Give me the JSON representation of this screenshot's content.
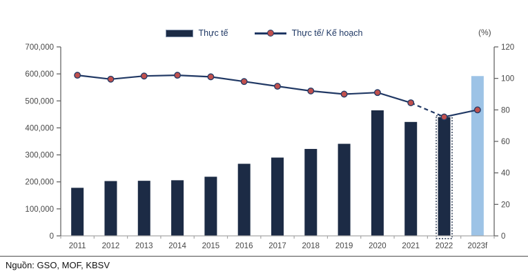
{
  "source_note": "Nguồn: GSO, MOF, KBSV",
  "colors": {
    "bar": "#1c2b45",
    "forecast_bar": "#9dc3e6",
    "line": "#203864",
    "marker_fill": "#c0504d",
    "marker_stroke": "#203864",
    "y_axis": "#595959",
    "x_axis": "#a6a6a6",
    "tick_label": "#474747",
    "legend_text": "#1f3864"
  },
  "chart_data": {
    "type": "bar+line",
    "title": "",
    "categories": [
      "2011",
      "2012",
      "2013",
      "2014",
      "2015",
      "2016",
      "2017",
      "2018",
      "2019",
      "2020",
      "2021",
      "2022",
      "2023f"
    ],
    "series": [
      {
        "name": "Thực tế",
        "type": "bar",
        "axis": "left",
        "values": [
          178000,
          203000,
          204000,
          206000,
          219000,
          267000,
          290000,
          322000,
          341000,
          465000,
          422000,
          440000,
          592000
        ]
      },
      {
        "name": "Thực tế/ Kế hoạch",
        "type": "line",
        "axis": "right",
        "values": [
          102,
          99.5,
          101.5,
          102,
          101,
          98,
          95,
          92,
          90,
          91,
          84.5,
          75.5,
          80
        ],
        "dashed_segment": [
          10,
          11
        ]
      }
    ],
    "left_axis": {
      "min": 0,
      "max": 700000,
      "step": 100000,
      "tick_labels": [
        "0",
        "100,000",
        "200,000",
        "300,000",
        "400,000",
        "500,000",
        "600,000",
        "700,000"
      ]
    },
    "right_axis": {
      "min": 0,
      "max": 120,
      "step": 20,
      "unit_label": "(%)",
      "tick_labels": [
        "0",
        "20",
        "40",
        "60",
        "80",
        "100",
        "120"
      ]
    },
    "bar_style": {
      "dotted_outline_index": 11,
      "forecast_index": 12
    },
    "legend_position": "top-center",
    "grid": false
  }
}
